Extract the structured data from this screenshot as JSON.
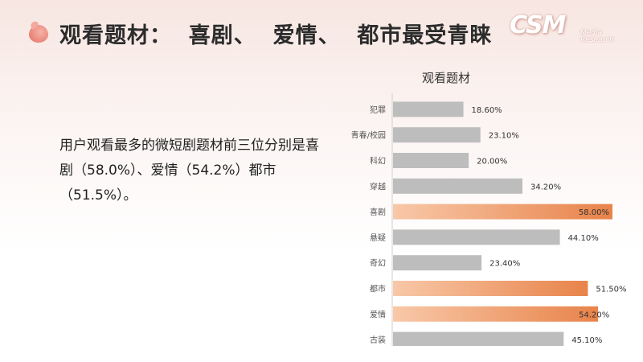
{
  "header": {
    "title": "观看题材：  喜剧、  爱情、  都市最受青睐",
    "logo_text": "CSM",
    "logo_sub_1": "Media",
    "logo_sub_2": "Research"
  },
  "summary_text": "用户观看最多的微短剧题材前三位分别是喜剧（58.0%）、爱情（54.2%）都市（51.5%）。",
  "colors": {
    "gray_bar": "#bdbdbd",
    "highlight_start": "#f8c8a8",
    "highlight_end": "#e8834a"
  },
  "chart_data": {
    "type": "bar",
    "orientation": "horizontal",
    "title": "观看题材",
    "categories": [
      "犯罪",
      "青春/校园",
      "科幻",
      "穿越",
      "喜剧",
      "悬疑",
      "奇幻",
      "都市",
      "爱情",
      "古装"
    ],
    "values": [
      18.6,
      23.1,
      20.0,
      34.2,
      58.0,
      44.1,
      23.4,
      51.5,
      54.2,
      45.1
    ],
    "value_labels": [
      "18.60%",
      "23.10%",
      "20.00%",
      "34.20%",
      "58.00%",
      "44.10%",
      "23.40%",
      "51.50%",
      "54.20%",
      "45.10%"
    ],
    "highlighted": [
      "喜剧",
      "都市",
      "爱情"
    ],
    "xlim": [
      0,
      58
    ],
    "grid": false,
    "legend": "none"
  }
}
